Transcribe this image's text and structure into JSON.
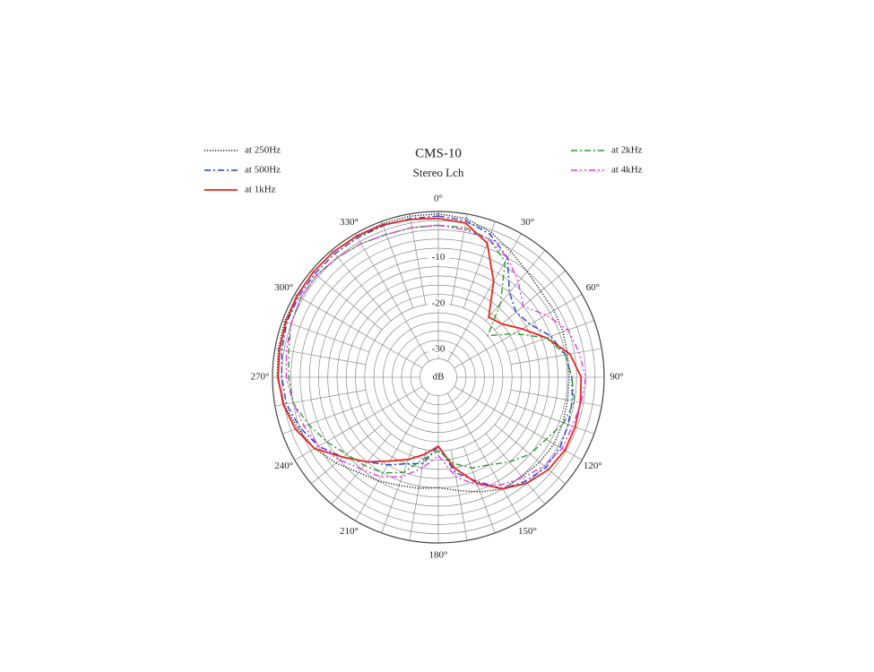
{
  "chart_data": {
    "type": "polar",
    "title": "CMS-10",
    "subtitle": "Stereo Lch",
    "r_label": "dB",
    "theta": [
      0,
      10,
      20,
      30,
      40,
      50,
      60,
      70,
      80,
      90,
      100,
      110,
      120,
      130,
      140,
      150,
      160,
      170,
      180,
      190,
      200,
      210,
      220,
      230,
      240,
      250,
      260,
      270,
      280,
      290,
      300,
      310,
      320,
      330,
      340,
      350
    ],
    "rlim": [
      -36,
      0
    ],
    "rticks": [
      -10,
      -20,
      -30
    ],
    "rgrid": [
      -32,
      -30,
      -28,
      -26,
      -24,
      -22,
      -20,
      -18,
      -16,
      -14,
      -12,
      -10,
      -8,
      -6,
      -4,
      -2,
      0
    ],
    "thetagrid": [
      0,
      10,
      20,
      30,
      40,
      50,
      60,
      70,
      80,
      90,
      100,
      110,
      120,
      130,
      140,
      150,
      160,
      170,
      180,
      190,
      200,
      210,
      220,
      230,
      240,
      250,
      260,
      270,
      280,
      290,
      300,
      310,
      320,
      330,
      340,
      350
    ],
    "thetaticks": [
      {
        "value": 0,
        "label": "0°"
      },
      {
        "value": 30,
        "label": "30°"
      },
      {
        "value": 60,
        "label": "60°"
      },
      {
        "value": 90,
        "label": "90°"
      },
      {
        "value": 120,
        "label": "120°"
      },
      {
        "value": 150,
        "label": "150°"
      },
      {
        "value": 180,
        "label": "180°"
      },
      {
        "value": 210,
        "label": "210°"
      },
      {
        "value": 240,
        "label": "240°"
      },
      {
        "value": 270,
        "label": "270°"
      },
      {
        "value": 300,
        "label": "300°"
      },
      {
        "value": 330,
        "label": "330°"
      }
    ],
    "series": [
      {
        "name": "at 250Hz",
        "color": "#111111",
        "style": "dotted",
        "values": [
          -0.5,
          -1,
          -2.5,
          -4.5,
          -6,
          -7,
          -7,
          -7.2,
          -7.5,
          -7.6,
          -7.5,
          -7.2,
          -7,
          -7.3,
          -7.8,
          -8,
          -9.5,
          -11,
          -12,
          -11.5,
          -11,
          -10,
          -9,
          -7,
          -5,
          -3.5,
          -2,
          -1,
          -0.7,
          -0.5,
          -0.5,
          -0.5,
          -0.5,
          -0.5,
          -0.5,
          -0.5
        ]
      },
      {
        "name": "at 500Hz",
        "color": "#1f3fd6",
        "style": "dashdot",
        "values": [
          -1,
          -1.5,
          -3,
          -6,
          -12,
          -14,
          -13,
          -10,
          -8,
          -7,
          -6.5,
          -6,
          -5.5,
          -5.5,
          -6.5,
          -8,
          -12,
          -15,
          -21,
          -17,
          -16,
          -14,
          -12,
          -9,
          -6,
          -4,
          -2.5,
          -2,
          -1.5,
          -1,
          -1,
          -1,
          -1,
          -1,
          -1,
          -1
        ]
      },
      {
        "name": "at 1kHz",
        "color": "#e8251e",
        "style": "solid",
        "values": [
          -1.5,
          -2,
          -5,
          -12,
          -19,
          -18,
          -15,
          -11,
          -7,
          -5,
          -4.7,
          -4.4,
          -4.3,
          -4.8,
          -6,
          -8,
          -11.5,
          -16,
          -21,
          -19,
          -17,
          -15,
          -12,
          -9,
          -5,
          -3,
          -1.8,
          -1.2,
          -1,
          -0.8,
          -0.6,
          -0.5,
          -0.5,
          -0.6,
          -0.8,
          -1.2
        ]
      },
      {
        "name": "at 2kHz",
        "color": "#2e9a2e",
        "style": "dashdot",
        "values": [
          -3,
          -3,
          -4,
          -7,
          -15,
          -22,
          -17,
          -11,
          -8,
          -7,
          -6,
          -7,
          -9,
          -10,
          -12,
          -14,
          -15,
          -17,
          -20,
          -18,
          -14,
          -12,
          -11,
          -10,
          -8,
          -6,
          -4,
          -3.5,
          -3,
          -2,
          -1.5,
          -1.5,
          -2,
          -2.5,
          -3,
          -3
        ]
      },
      {
        "name": "at 4kHz",
        "color": "#e536e5",
        "style": "dashdotdot",
        "values": [
          -3,
          -3.5,
          -4,
          -6,
          -9,
          -12,
          -9,
          -6,
          -5,
          -4,
          -4.5,
          -5,
          -5,
          -6,
          -7.5,
          -9,
          -11,
          -14,
          -19,
          -16,
          -13,
          -11,
          -10,
          -8,
          -6,
          -5,
          -4,
          -3,
          -2.5,
          -2,
          -1.5,
          -1.5,
          -2,
          -2.5,
          -3,
          -3
        ]
      }
    ]
  }
}
